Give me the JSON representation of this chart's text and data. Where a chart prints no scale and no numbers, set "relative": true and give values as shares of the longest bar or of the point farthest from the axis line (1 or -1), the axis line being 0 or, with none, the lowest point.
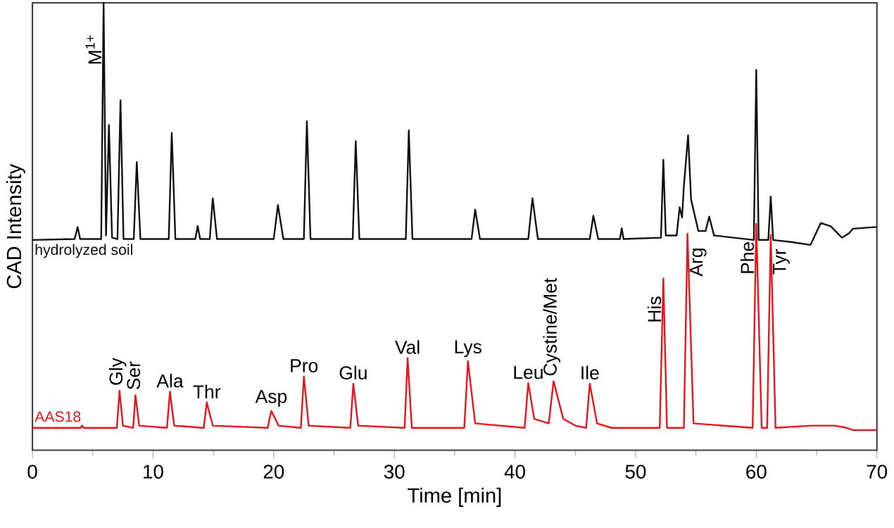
{
  "chart_data": {
    "type": "line",
    "relative": true,
    "xlabel": "Time [min]",
    "ylabel": "CAD Intensity",
    "xlim": [
      0,
      70
    ],
    "xticks": [
      0,
      10,
      20,
      30,
      40,
      50,
      60,
      70
    ],
    "series": [
      {
        "name": "AAS18",
        "color": "#e8141c",
        "x": [
          0,
          4.0,
          4.1,
          4.25,
          7.0,
          7.22,
          7.5,
          8.35,
          8.54,
          8.85,
          11.15,
          11.4,
          11.75,
          14.2,
          14.45,
          14.95,
          19.5,
          19.8,
          20.4,
          22.25,
          22.5,
          22.9,
          26.35,
          26.6,
          27.0,
          30.85,
          31.1,
          31.45,
          35.8,
          36.1,
          36.7,
          40.8,
          41.1,
          41.6,
          42.8,
          43.2,
          44.0,
          45.0,
          45.9,
          46.2,
          46.8,
          48.0,
          52.0,
          52.3,
          52.6,
          54.0,
          54.3,
          54.8,
          59.7,
          60.0,
          60.45,
          60.9,
          61.2,
          61.6,
          64.5,
          66.5,
          67.5,
          68.0,
          70
        ],
        "values": [
          0.05,
          0.05,
          0.055,
          0.05,
          0.05,
          0.133,
          0.055,
          0.05,
          0.123,
          0.055,
          0.05,
          0.131,
          0.055,
          0.05,
          0.107,
          0.055,
          0.05,
          0.088,
          0.055,
          0.05,
          0.165,
          0.055,
          0.05,
          0.149,
          0.055,
          0.05,
          0.206,
          0.05,
          0.05,
          0.199,
          0.06,
          0.05,
          0.15,
          0.07,
          0.06,
          0.154,
          0.07,
          0.055,
          0.05,
          0.149,
          0.06,
          0.05,
          0.05,
          0.384,
          0.05,
          0.05,
          0.484,
          0.06,
          0.05,
          0.506,
          0.05,
          0.05,
          0.481,
          0.05,
          0.055,
          0.055,
          0.05,
          0.045,
          0.045
        ]
      },
      {
        "name": "hydrolyzed soil",
        "color": "#111111",
        "x": [
          0,
          3.5,
          3.75,
          3.95,
          5.7,
          5.9,
          6.1,
          6.34,
          6.6,
          7.05,
          7.3,
          7.55,
          8.4,
          8.65,
          8.95,
          11.3,
          11.55,
          11.85,
          13.5,
          13.7,
          13.9,
          14.7,
          14.95,
          15.3,
          20.0,
          20.35,
          20.8,
          22.5,
          22.75,
          23.05,
          26.55,
          26.8,
          27.1,
          30.95,
          31.2,
          31.5,
          36.4,
          36.7,
          37.1,
          41.1,
          41.45,
          41.9,
          46.2,
          46.5,
          46.9,
          48.7,
          48.85,
          49.0,
          52.1,
          52.3,
          52.5,
          53.4,
          53.65,
          53.85,
          54.0,
          54.35,
          54.6,
          55.2,
          55.8,
          56.1,
          56.5,
          59.8,
          60.0,
          60.2,
          61.0,
          61.2,
          61.4,
          63.0,
          64.5,
          65.35,
          66.2,
          67.1,
          67.7,
          68.0,
          70
        ],
        "values": [
          0.47,
          0.472,
          0.499,
          0.472,
          0.472,
          1.0,
          0.48,
          0.727,
          0.475,
          0.472,
          0.782,
          0.472,
          0.472,
          0.644,
          0.472,
          0.472,
          0.709,
          0.472,
          0.472,
          0.501,
          0.472,
          0.472,
          0.563,
          0.472,
          0.472,
          0.548,
          0.472,
          0.472,
          0.735,
          0.472,
          0.472,
          0.691,
          0.472,
          0.472,
          0.715,
          0.472,
          0.472,
          0.538,
          0.472,
          0.472,
          0.563,
          0.472,
          0.472,
          0.524,
          0.472,
          0.472,
          0.496,
          0.472,
          0.475,
          0.649,
          0.48,
          0.48,
          0.543,
          0.52,
          0.59,
          0.704,
          0.56,
          0.49,
          0.49,
          0.522,
          0.48,
          0.47,
          0.85,
          0.47,
          0.47,
          0.567,
          0.47,
          0.465,
          0.459,
          0.508,
          0.5,
          0.475,
          0.485,
          0.495,
          0.499
        ]
      }
    ],
    "annotations": [
      {
        "text": "M$^{1+}$",
        "x": 5.9,
        "y": 1.0
      },
      {
        "text": "Gly",
        "x": 7.22,
        "y": 0.133
      },
      {
        "text": "Ser",
        "x": 8.54,
        "y": 0.123
      },
      {
        "text": "Ala",
        "x": 11.4,
        "y": 0.131
      },
      {
        "text": "Thr",
        "x": 14.45,
        "y": 0.107
      },
      {
        "text": "Asp",
        "x": 19.8,
        "y": 0.088
      },
      {
        "text": "Pro",
        "x": 22.5,
        "y": 0.165
      },
      {
        "text": "Glu",
        "x": 26.6,
        "y": 0.149
      },
      {
        "text": "Val",
        "x": 31.1,
        "y": 0.206
      },
      {
        "text": "Lys",
        "x": 36.1,
        "y": 0.199
      },
      {
        "text": "Leu",
        "x": 41.1,
        "y": 0.15
      },
      {
        "text": "Cystine/Met",
        "x": 43.2,
        "y": 0.154
      },
      {
        "text": "Ile",
        "x": 46.2,
        "y": 0.149
      },
      {
        "text": "His",
        "x": 52.3,
        "y": 0.384
      },
      {
        "text": "Arg",
        "x": 54.3,
        "y": 0.484
      },
      {
        "text": "Phe",
        "x": 60.0,
        "y": 0.506
      },
      {
        "text": "Tyr",
        "x": 61.2,
        "y": 0.481
      }
    ]
  }
}
